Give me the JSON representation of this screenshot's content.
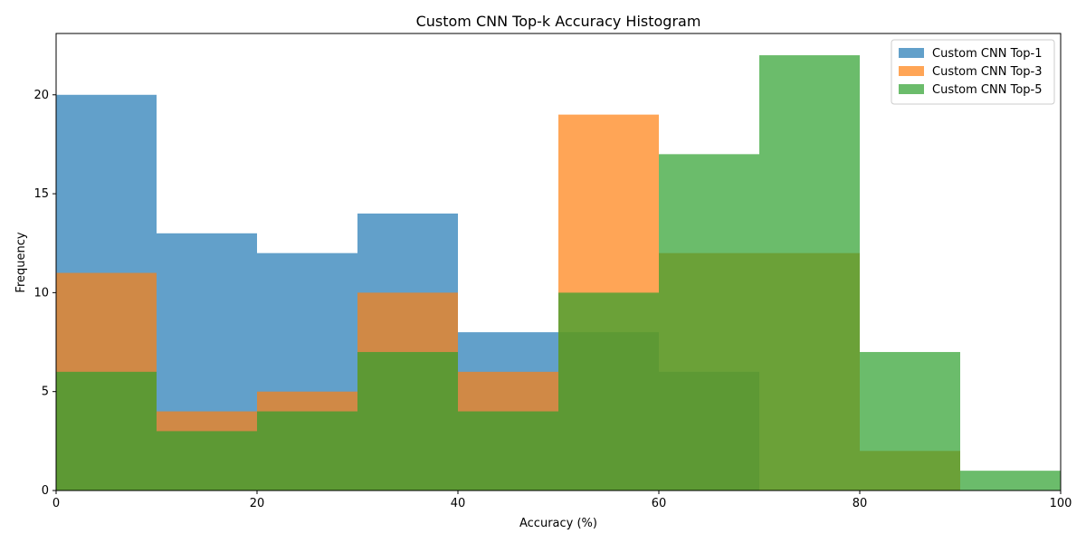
{
  "chart_data": {
    "type": "bar",
    "title": "Custom CNN Top-k Accuracy Histogram",
    "xlabel": "Accuracy (%)",
    "ylabel": "Frequency",
    "xlim": [
      0,
      100
    ],
    "ylim": [
      0,
      23.1
    ],
    "xticks": [
      0,
      20,
      40,
      60,
      80,
      100
    ],
    "yticks": [
      0,
      5,
      10,
      15,
      20
    ],
    "bin_edges": [
      0,
      10,
      20,
      30,
      40,
      50,
      60,
      70,
      80,
      90,
      100
    ],
    "legend_position": "top-right",
    "grid": false,
    "series": [
      {
        "name": "Custom CNN Top-1",
        "color": "#1f77b4",
        "values": [
          20,
          13,
          12,
          14,
          8,
          8,
          6,
          0,
          0,
          0
        ]
      },
      {
        "name": "Custom CNN Top-3",
        "color": "#ff7f0e",
        "values": [
          11,
          4,
          5,
          10,
          6,
          19,
          12,
          12,
          2,
          0
        ]
      },
      {
        "name": "Custom CNN Top-5",
        "color": "#2ca02c",
        "values": [
          6,
          3,
          4,
          7,
          4,
          10,
          17,
          22,
          7,
          1
        ]
      }
    ],
    "opacity": 0.7
  }
}
